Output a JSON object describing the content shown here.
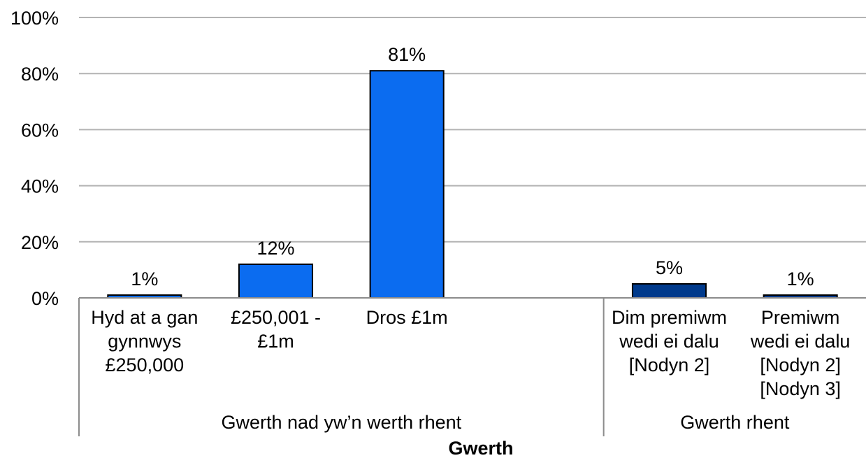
{
  "chart_data": {
    "type": "bar",
    "title": "",
    "xlabel": "Gwerth",
    "ylabel": "",
    "ylim": [
      0,
      100
    ],
    "yticks": [
      "0%",
      "20%",
      "40%",
      "60%",
      "80%",
      "100%"
    ],
    "grid": true,
    "groups": [
      {
        "label": "Gwerth nad yw’n werth rhent",
        "categories": [
          {
            "label_lines": [
              "Hyd at a gan",
              "gynnwys",
              "£250,000"
            ],
            "value": 1,
            "data_label": "1%",
            "color": "#0b6cf0"
          },
          {
            "label_lines": [
              "£250,001 -",
              "£1m"
            ],
            "value": 12,
            "data_label": "12%",
            "color": "#0b6cf0"
          },
          {
            "label_lines": [
              "Dros £1m"
            ],
            "value": 81,
            "data_label": "81%",
            "color": "#0b6cf0"
          }
        ]
      },
      {
        "label": "Gwerth rhent",
        "categories": [
          {
            "label_lines": [
              "Dim premiwm",
              "wedi ei dalu",
              "[Nodyn 2]"
            ],
            "value": 5,
            "data_label": "5%",
            "color": "#003a8c"
          },
          {
            "label_lines": [
              "Premiwm",
              "wedi ei dalu",
              "[Nodyn 2]",
              "[Nodyn 3]"
            ],
            "value": 1,
            "data_label": "1%",
            "color": "#003a8c"
          }
        ]
      }
    ]
  }
}
